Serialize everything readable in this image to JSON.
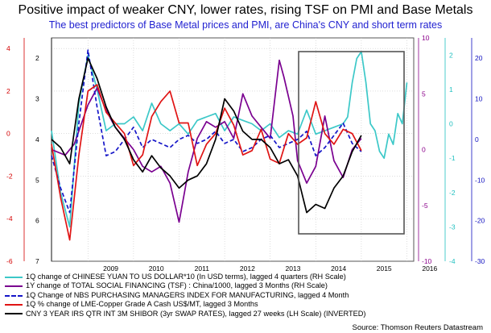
{
  "title": "Positive impact of weaker CNY, lower rates, rising TSF on PMI and Base Metals",
  "subtitle": "The best predictors of Base Metal prices and PMI, are China's CNY and short term rates",
  "source": "Source: Thomson Reuters Datastream",
  "chart_data": {
    "type": "line",
    "x_axis": {
      "ticks": [
        "2009",
        "2010",
        "2011",
        "2012",
        "2013",
        "2014",
        "2015",
        "2016"
      ]
    },
    "axes": {
      "axis1": {
        "side": "left",
        "color": "#d40000",
        "ticks": [
          "4",
          "2",
          "0",
          "-2",
          "-4",
          "-6"
        ],
        "range": [
          -6,
          4.5
        ]
      },
      "axis2": {
        "side": "left",
        "color": "#000000",
        "ticks": [
          "2",
          "3",
          "4",
          "5",
          "6",
          "7"
        ],
        "range": [
          1.5,
          7
        ],
        "inverted": true
      },
      "axis3": {
        "side": "right",
        "color": "#8b008b",
        "ticks": [
          "10",
          "5",
          "0",
          "-5",
          "-10"
        ],
        "range": [
          -10,
          10
        ]
      },
      "axis4": {
        "side": "right",
        "color": "#20c0c0",
        "ticks": [
          "2",
          "1",
          "0",
          "-1",
          "-2",
          "-3",
          "-4"
        ],
        "range": [
          -4,
          2.5
        ]
      },
      "axis5": {
        "side": "right",
        "color": "#1010c0",
        "ticks": [
          "20",
          "10",
          "0",
          "-10",
          "-20",
          "-30"
        ],
        "range": [
          -30,
          25
        ]
      }
    },
    "series": [
      {
        "name": "1Q change of CHINESE YUAN TO US DOLLAR*10 (In USD terms), lagged 4 quarters (RH Scale)",
        "color": "#3cc8c8",
        "style": "solid",
        "axis": "axis4",
        "x": [
          2008.2,
          2008.4,
          2008.6,
          2008.8,
          2009.0,
          2009.2,
          2009.4,
          2009.6,
          2009.8,
          2010.0,
          2010.2,
          2010.4,
          2010.6,
          2010.8,
          2011.0,
          2011.2,
          2011.4,
          2011.6,
          2011.8,
          2012.0,
          2012.2,
          2012.4,
          2012.6,
          2012.8,
          2013.0,
          2013.2,
          2013.4,
          2013.6,
          2013.8,
          2014.0,
          2014.2,
          2014.4,
          2014.6,
          2014.7,
          2014.8,
          2014.9,
          2015.0,
          2015.1,
          2015.2,
          2015.3,
          2015.4,
          2015.5,
          2015.6,
          2015.7,
          2015.8,
          2015.9,
          2016.0
        ],
        "y": [
          -0.2,
          -2.0,
          -3.0,
          0.6,
          2.0,
          1.0,
          -0.2,
          0.0,
          0.0,
          0.2,
          -0.2,
          0.6,
          0.0,
          -0.2,
          0.0,
          -0.3,
          0.1,
          0.2,
          0.3,
          -0.2,
          0.2,
          0.1,
          0.0,
          -0.2,
          0.0,
          -0.4,
          -0.2,
          -0.3,
          0.4,
          -0.3,
          -0.2,
          -0.1,
          0.0,
          0.2,
          1.2,
          1.9,
          2.1,
          1.2,
          0.0,
          -0.2,
          -0.8,
          -1.0,
          -0.3,
          -0.6,
          0.3,
          0.0,
          1.2
        ]
      },
      {
        "name": "1Y change of TOTAL SOCIAL FINANCING (TSF) : China/1000, lagged 3 Months (RH Scale)",
        "color": "#7a0090",
        "style": "solid",
        "axis": "axis3",
        "x": [
          2008.2,
          2008.5,
          2008.7,
          2009.0,
          2009.2,
          2009.4,
          2009.6,
          2009.8,
          2010.0,
          2010.2,
          2010.4,
          2010.6,
          2010.8,
          2011.0,
          2011.2,
          2011.4,
          2011.6,
          2011.8,
          2012.0,
          2012.2,
          2012.4,
          2012.6,
          2012.8,
          2013.0,
          2013.2,
          2013.3,
          2013.5,
          2013.6,
          2013.8,
          2014.0,
          2014.2,
          2014.4,
          2014.6,
          2014.8,
          2015.0
        ],
        "y": [
          0.0,
          -0.5,
          0.5,
          4.0,
          5.5,
          3.5,
          2.0,
          1.0,
          0.0,
          -1.5,
          -2.0,
          -1.5,
          -3.0,
          -6.5,
          -2.0,
          1.0,
          2.5,
          2.0,
          2.5,
          1.0,
          5.0,
          3.0,
          2.0,
          1.0,
          8.0,
          6.5,
          3.0,
          -1.0,
          -3.0,
          -1.5,
          3.0,
          -1.0,
          -2.5,
          0.0,
          1.0
        ]
      },
      {
        "name": "1Q Change of NBS PURCHASING MANAGERS INDEX  FOR MANUFACTURING, lagged 4 Month",
        "color": "#1515c8",
        "style": "dashed",
        "axis": "axis5",
        "x": [
          2008.2,
          2008.4,
          2008.6,
          2008.8,
          2009.0,
          2009.2,
          2009.4,
          2009.6,
          2009.8,
          2010.0,
          2010.2,
          2010.4,
          2010.6,
          2010.8,
          2011.0,
          2011.2,
          2011.4,
          2011.6,
          2011.8,
          2012.0,
          2012.2,
          2012.4,
          2012.6,
          2012.8,
          2013.0,
          2013.2,
          2013.4,
          2013.6,
          2013.8,
          2014.0,
          2014.2,
          2014.4,
          2014.6,
          2014.8,
          2015.0
        ],
        "y": [
          -4,
          -12,
          -18,
          4,
          22,
          8,
          -4,
          -3,
          0,
          3,
          -2,
          0,
          -1,
          -2,
          0,
          1,
          -1,
          0,
          2,
          -1,
          0,
          -3,
          -2,
          0,
          1,
          -2,
          -1,
          0,
          2,
          -4,
          -2,
          1,
          4,
          -1,
          -3
        ]
      },
      {
        "name": "1Q % change of LME-Copper Grade A Cash US$/MT, lagged 3 Months",
        "color": "#e01414",
        "style": "solid",
        "axis": "axis1",
        "x": [
          2008.2,
          2008.4,
          2008.6,
          2008.8,
          2009.0,
          2009.2,
          2009.4,
          2009.6,
          2009.8,
          2010.0,
          2010.2,
          2010.4,
          2010.6,
          2010.8,
          2011.0,
          2011.2,
          2011.4,
          2011.6,
          2011.8,
          2012.0,
          2012.2,
          2012.4,
          2012.6,
          2012.8,
          2013.0,
          2013.2,
          2013.4,
          2013.6,
          2013.8,
          2014.0,
          2014.2,
          2014.4,
          2014.6,
          2014.8,
          2015.0
        ],
        "y": [
          -0.5,
          -3.0,
          -5.0,
          -1.0,
          2.0,
          2.3,
          1.0,
          0.5,
          0.0,
          -1.5,
          -1.0,
          0.8,
          1.5,
          2.0,
          0.5,
          0.5,
          -1.5,
          -0.5,
          0.0,
          1.2,
          0.4,
          -1.0,
          -0.8,
          0.2,
          -1.2,
          -1.4,
          0.0,
          -0.5,
          -0.2,
          1.5,
          0.0,
          -0.5,
          0.2,
          0.0,
          -0.8
        ]
      },
      {
        "name": "CNY 3 YEAR IRS QTR INT 3M SHIBOR (3yr SWAP RATES), lagged 27 weeks (LH Scale) (INVERTED)",
        "color": "#000000",
        "style": "solid",
        "axis": "axis2",
        "x": [
          2008.2,
          2008.4,
          2008.6,
          2008.8,
          2009.0,
          2009.2,
          2009.4,
          2009.6,
          2009.8,
          2010.0,
          2010.2,
          2010.4,
          2010.6,
          2010.8,
          2011.0,
          2011.2,
          2011.4,
          2011.6,
          2011.8,
          2012.0,
          2012.2,
          2012.4,
          2012.6,
          2012.8,
          2013.0,
          2013.2,
          2013.4,
          2013.6,
          2013.8,
          2014.0,
          2014.2,
          2014.4,
          2014.6,
          2014.8,
          2015.0
        ],
        "y": [
          4.0,
          4.2,
          4.6,
          3.0,
          2.0,
          2.5,
          3.2,
          3.7,
          4.0,
          4.5,
          4.8,
          4.4,
          4.7,
          4.9,
          5.2,
          5.0,
          4.9,
          4.6,
          4.0,
          3.0,
          3.3,
          3.8,
          4.0,
          4.0,
          4.2,
          4.6,
          4.5,
          4.9,
          5.8,
          5.6,
          5.7,
          5.2,
          4.9,
          4.3,
          3.9
        ]
      }
    ]
  }
}
